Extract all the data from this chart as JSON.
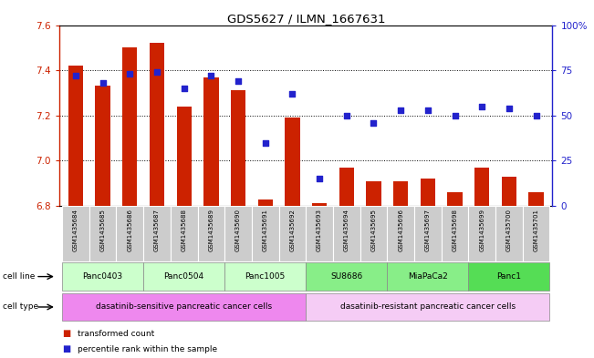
{
  "title": "GDS5627 / ILMN_1667631",
  "samples": [
    "GSM1435684",
    "GSM1435685",
    "GSM1435686",
    "GSM1435687",
    "GSM1435688",
    "GSM1435689",
    "GSM1435690",
    "GSM1435691",
    "GSM1435692",
    "GSM1435693",
    "GSM1435694",
    "GSM1435695",
    "GSM1435696",
    "GSM1435697",
    "GSM1435698",
    "GSM1435699",
    "GSM1435700",
    "GSM1435701"
  ],
  "bar_values": [
    7.42,
    7.33,
    7.5,
    7.52,
    7.24,
    7.37,
    7.31,
    6.83,
    7.19,
    6.81,
    6.97,
    6.91,
    6.91,
    6.92,
    6.86,
    6.97,
    6.93,
    6.86
  ],
  "dot_values": [
    72,
    68,
    73,
    74,
    65,
    72,
    69,
    35,
    62,
    15,
    50,
    46,
    53,
    53,
    50,
    55,
    54,
    50
  ],
  "ylim_left": [
    6.8,
    7.6
  ],
  "ylim_right": [
    0,
    100
  ],
  "yticks_left": [
    6.8,
    7.0,
    7.2,
    7.4,
    7.6
  ],
  "yticks_right": [
    0,
    25,
    50,
    75,
    100
  ],
  "ytick_labels_right": [
    "0",
    "25",
    "50",
    "75",
    "100%"
  ],
  "bar_color": "#cc2200",
  "dot_color": "#2222cc",
  "cell_lines": [
    {
      "label": "Panc0403",
      "start": 0,
      "end": 2,
      "color": "#ccffcc"
    },
    {
      "label": "Panc0504",
      "start": 3,
      "end": 5,
      "color": "#ccffcc"
    },
    {
      "label": "Panc1005",
      "start": 6,
      "end": 8,
      "color": "#ccffcc"
    },
    {
      "label": "SU8686",
      "start": 9,
      "end": 11,
      "color": "#88ee88"
    },
    {
      "label": "MiaPaCa2",
      "start": 12,
      "end": 14,
      "color": "#88ee88"
    },
    {
      "label": "Panc1",
      "start": 15,
      "end": 17,
      "color": "#55dd55"
    }
  ],
  "cell_types": [
    {
      "label": "dasatinib-sensitive pancreatic cancer cells",
      "start": 0,
      "end": 8,
      "color": "#ee88ee"
    },
    {
      "label": "dasatinib-resistant pancreatic cancer cells",
      "start": 9,
      "end": 17,
      "color": "#f5ccf5"
    }
  ],
  "legend_bar_label": "transformed count",
  "legend_dot_label": "percentile rank within the sample",
  "sample_bg_color": "#cccccc",
  "plot_bg_color": "#ffffff",
  "border_color": "#000000"
}
